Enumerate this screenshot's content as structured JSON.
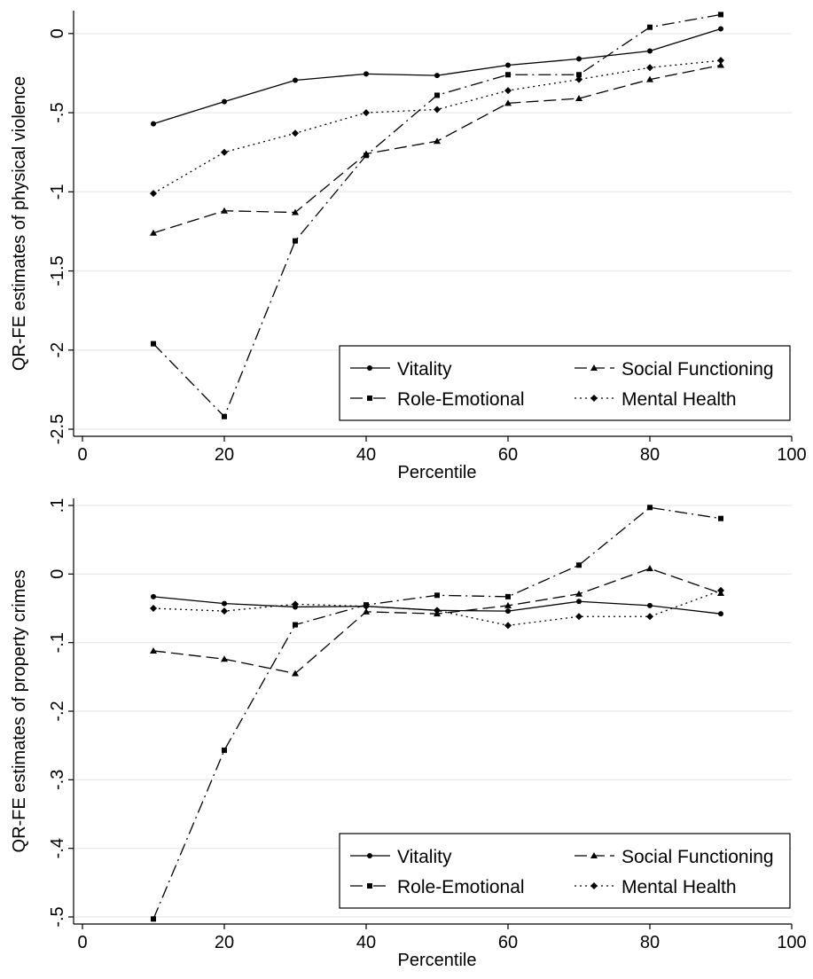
{
  "chart_data": [
    {
      "type": "line",
      "xlabel": "Percentile",
      "ylabel": "QR-FE estimates of physical violence",
      "xlim": [
        0,
        100
      ],
      "ylim": [
        -2.5,
        0.1
      ],
      "xticks": [
        "0",
        "20",
        "40",
        "60",
        "80",
        "100"
      ],
      "yticks": [
        "0",
        "-.5",
        "-1",
        "-1.5",
        "-2",
        "-2.5"
      ],
      "ytick_values": [
        0,
        -0.5,
        -1,
        -1.5,
        -2,
        -2.5
      ],
      "grid": true,
      "legend_position": "bottom-right",
      "x": [
        10,
        20,
        30,
        40,
        50,
        60,
        70,
        80,
        90
      ],
      "series": [
        {
          "name": "Vitality",
          "marker": "circle",
          "dash": "solid",
          "values": [
            -0.57,
            -0.43,
            -0.295,
            -0.255,
            -0.265,
            -0.2,
            -0.16,
            -0.11,
            0.03
          ]
        },
        {
          "name": "Social Functioning",
          "marker": "triangle",
          "dash": "longdash",
          "values": [
            -1.26,
            -1.12,
            -1.13,
            -0.76,
            -0.68,
            -0.44,
            -0.41,
            -0.29,
            -0.2
          ]
        },
        {
          "name": "Role-Emotional",
          "marker": "square",
          "dash": "dashdot",
          "values": [
            -1.96,
            -2.42,
            -1.31,
            -0.77,
            -0.39,
            -0.26,
            -0.26,
            0.04,
            0.12
          ]
        },
        {
          "name": "Mental Health",
          "marker": "diamond",
          "dash": "dotted",
          "values": [
            -1.01,
            -0.75,
            -0.63,
            -0.5,
            -0.48,
            -0.36,
            -0.29,
            -0.215,
            -0.17
          ]
        }
      ]
    },
    {
      "type": "line",
      "xlabel": "Percentile",
      "ylabel": "QR-FE estimates of property crimes",
      "xlim": [
        0,
        100
      ],
      "ylim": [
        -0.5,
        0.1
      ],
      "xticks": [
        "0",
        "20",
        "40",
        "60",
        "80",
        "100"
      ],
      "yticks": [
        ".1",
        "0",
        "-.1",
        "-.2",
        "-.3",
        "-.4",
        "-.5"
      ],
      "ytick_values": [
        0.1,
        0,
        -0.1,
        -0.2,
        -0.3,
        -0.4,
        -0.5
      ],
      "grid": true,
      "legend_position": "bottom-right",
      "x": [
        10,
        20,
        30,
        40,
        50,
        60,
        70,
        80,
        90
      ],
      "series": [
        {
          "name": "Vitality",
          "marker": "circle",
          "dash": "solid",
          "values": [
            -0.033,
            -0.043,
            -0.048,
            -0.047,
            -0.053,
            -0.054,
            -0.04,
            -0.046,
            -0.058
          ]
        },
        {
          "name": "Social Functioning",
          "marker": "triangle",
          "dash": "longdash",
          "values": [
            -0.112,
            -0.124,
            -0.145,
            -0.055,
            -0.058,
            -0.046,
            -0.029,
            0.008,
            -0.028
          ]
        },
        {
          "name": "Role-Emotional",
          "marker": "square",
          "dash": "dashdot",
          "values": [
            -0.503,
            -0.257,
            -0.074,
            -0.045,
            -0.031,
            -0.033,
            0.013,
            0.097,
            0.081
          ]
        },
        {
          "name": "Mental Health",
          "marker": "diamond",
          "dash": "dotted",
          "values": [
            -0.05,
            -0.054,
            -0.044,
            -0.047,
            -0.053,
            -0.075,
            -0.062,
            -0.062,
            -0.024
          ]
        }
      ]
    }
  ],
  "legend_order": [
    "Vitality",
    "Social Functioning",
    "Role-Emotional",
    "Mental Health"
  ],
  "colors": {
    "line": "#000000",
    "grid": "#e8eef0",
    "background": "#ffffff"
  }
}
